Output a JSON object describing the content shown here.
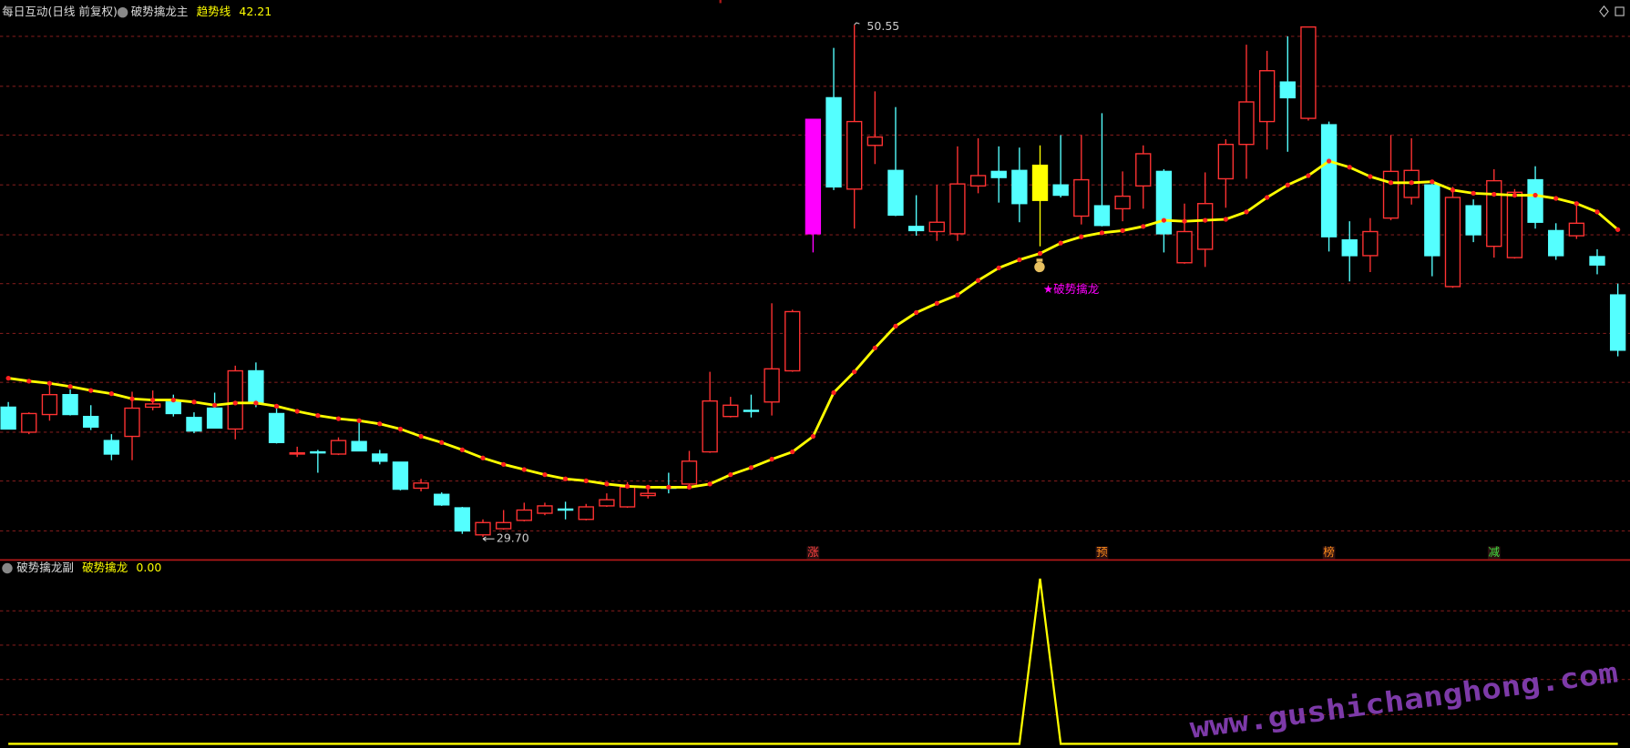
{
  "header": {
    "symbol": "每日互动(日线 前复权)"
  },
  "watermark": "www.gushichanghong.com",
  "chart_data": [
    {
      "type": "candlestick",
      "title": "破势擒龙主",
      "open": [
        34.98,
        33.96,
        34.68,
        35.49,
        34.6,
        33.62,
        33.79,
        34.98,
        35.19,
        34.56,
        34.94,
        34.09,
        36.46,
        34.72,
        33.07,
        33.16,
        33.07,
        33.58,
        33.07,
        32.74,
        31.68,
        31.43,
        30.88,
        29.78,
        30.03,
        30.37,
        30.66,
        30.83,
        30.41,
        30.96,
        30.92,
        31.38,
        31.72,
        31.85,
        33.16,
        34.6,
        34.85,
        35.19,
        36.46,
        42.04,
        47.58,
        43.86,
        45.64,
        44.62,
        42.34,
        42.13,
        42.04,
        43.99,
        44.58,
        44.62,
        43.4,
        44.03,
        42.76,
        43.18,
        43.06,
        43.99,
        44.58,
        40.86,
        41.41,
        44.28,
        45.68,
        46.61,
        48.22,
        46.74,
        46.48,
        41.79,
        41.15,
        42.68,
        43.52,
        44.03,
        39.89,
        43.18,
        41.53,
        41.07,
        44.24,
        42.17,
        41.96,
        41.11,
        39.55
      ],
      "high": [
        35.19,
        34.77,
        36.04,
        35.7,
        35.06,
        33.88,
        35.61,
        35.66,
        35.49,
        34.77,
        35.57,
        36.67,
        36.8,
        34.98,
        33.37,
        33.24,
        33.75,
        34.51,
        33.24,
        32.74,
        32.06,
        31.51,
        30.92,
        30.41,
        30.79,
        31.09,
        31.09,
        31.13,
        31.04,
        31.47,
        31.93,
        31.72,
        32.31,
        33.2,
        36.42,
        35.4,
        35.49,
        39.21,
        38.95,
        46.7,
        49.61,
        50.55,
        47.84,
        47.2,
        43.61,
        44.03,
        45.6,
        45.93,
        45.6,
        45.55,
        45.64,
        46.06,
        46.06,
        46.95,
        44.58,
        45.64,
        44.67,
        43.27,
        44.54,
        45.89,
        49.74,
        49.49,
        50.08,
        50.46,
        46.61,
        42.55,
        42.68,
        46.06,
        45.93,
        44.12,
        43.95,
        43.44,
        44.67,
        43.86,
        44.79,
        42.47,
        43.27,
        41.41,
        40.01
      ],
      "low": [
        34.09,
        33.88,
        34.43,
        34.64,
        34.05,
        32.82,
        32.82,
        34.85,
        34.6,
        33.92,
        34.13,
        33.67,
        34.98,
        33.5,
        32.95,
        32.31,
        33.03,
        33.2,
        32.65,
        31.59,
        31.55,
        30.96,
        29.82,
        29.7,
        29.99,
        30.33,
        30.58,
        30.41,
        30.37,
        30.92,
        30.88,
        31.26,
        31.47,
        31.68,
        33.12,
        34.56,
        34.56,
        34.64,
        36.42,
        41.28,
        43.82,
        42.25,
        44.88,
        42.76,
        41.96,
        41.75,
        41.75,
        43.69,
        43.31,
        42.51,
        41.53,
        43.52,
        42.42,
        42.34,
        42.55,
        43.06,
        41.28,
        40.82,
        40.69,
        43.1,
        44.28,
        45.47,
        45.38,
        46.65,
        41.32,
        40.1,
        40.48,
        42.59,
        43.23,
        40.31,
        39.84,
        41.7,
        41.07,
        41.03,
        42.25,
        40.98,
        41.83,
        40.39,
        37.05
      ],
      "close": [
        34.09,
        34.72,
        35.49,
        34.68,
        34.17,
        33.07,
        34.94,
        35.11,
        34.72,
        34.01,
        34.13,
        36.46,
        35.15,
        33.54,
        33.12,
        33.12,
        33.62,
        33.2,
        32.78,
        31.64,
        31.89,
        31.0,
        29.94,
        30.28,
        30.28,
        30.79,
        30.96,
        30.79,
        30.92,
        31.21,
        31.72,
        31.47,
        31.68,
        32.78,
        35.23,
        35.06,
        34.81,
        36.54,
        38.87,
        46.7,
        43.95,
        46.61,
        45.98,
        42.8,
        42.17,
        42.51,
        44.07,
        44.41,
        44.33,
        43.27,
        44.83,
        43.61,
        44.24,
        42.38,
        43.57,
        45.3,
        42.04,
        42.13,
        43.27,
        45.68,
        47.41,
        48.68,
        47.58,
        50.46,
        41.92,
        41.15,
        42.13,
        44.58,
        44.62,
        41.15,
        43.52,
        42.0,
        44.2,
        43.73,
        42.51,
        41.15,
        42.47,
        40.77,
        37.3
      ],
      "up_color": "#ff3232",
      "down_color": "#54ffff",
      "highlight": [
        {
          "index": 39,
          "color": "#ff00ff"
        },
        {
          "index": 50,
          "color": "#ffff00"
        }
      ],
      "series": [
        {
          "name": "趋势线",
          "color": "#ffff00",
          "dot_color": "#ff2020",
          "values": [
            36.16,
            36.04,
            35.95,
            35.82,
            35.66,
            35.53,
            35.32,
            35.27,
            35.27,
            35.19,
            35.06,
            35.15,
            35.15,
            35.02,
            34.81,
            34.64,
            34.51,
            34.43,
            34.3,
            34.09,
            33.79,
            33.54,
            33.24,
            32.91,
            32.65,
            32.44,
            32.23,
            32.06,
            31.98,
            31.85,
            31.76,
            31.72,
            31.72,
            31.72,
            31.85,
            32.23,
            32.52,
            32.86,
            33.16,
            33.79,
            35.57,
            36.42,
            37.39,
            38.28,
            38.83,
            39.21,
            39.55,
            40.14,
            40.65,
            40.98,
            41.24,
            41.66,
            41.92,
            42.08,
            42.17,
            42.34,
            42.59,
            42.55,
            42.59,
            42.63,
            42.93,
            43.52,
            44.03,
            44.41,
            45.0,
            44.75,
            44.37,
            44.12,
            44.12,
            44.16,
            43.82,
            43.69,
            43.65,
            43.61,
            43.61,
            43.48,
            43.27,
            42.93,
            42.21
          ]
        }
      ],
      "max_label": "50.55",
      "min_label": "29.70",
      "annotations": [
        {
          "index": 50,
          "text": "★破势擒龙",
          "color": "#ff00ff"
        }
      ],
      "signals": [
        {
          "index": 39,
          "label": "涨",
          "color": "#ff4040"
        },
        {
          "index": 53,
          "label": "预",
          "color": "#ff8c1a"
        },
        {
          "index": 64,
          "label": "榜",
          "color": "#ff8c1a"
        },
        {
          "index": 72,
          "label": "减",
          "color": "#40e040"
        }
      ],
      "ylim": [
        28.8,
        51.56
      ]
    },
    {
      "type": "line",
      "title": "破势擒龙副",
      "series": [
        {
          "name": "破势擒龙",
          "color": "#ffff00",
          "values": [
            0,
            0,
            0,
            0,
            0,
            0,
            0,
            0,
            0,
            0,
            0,
            0,
            0,
            0,
            0,
            0,
            0,
            0,
            0,
            0,
            0,
            0,
            0,
            0,
            0,
            0,
            0,
            0,
            0,
            0,
            0,
            0,
            0,
            0,
            0,
            0,
            0,
            0,
            0,
            0,
            0,
            0,
            0,
            0,
            0,
            0,
            0,
            0,
            0,
            0,
            1,
            0,
            0,
            0,
            0,
            0,
            0,
            0,
            0,
            0,
            0,
            0,
            0,
            0,
            0,
            0,
            0,
            0,
            0,
            0,
            0,
            0,
            0,
            0,
            0,
            0,
            0,
            0,
            0
          ],
          "value_labels": [
            null,
            null,
            null,
            null,
            null,
            null,
            null,
            null,
            null,
            null,
            null,
            null,
            null,
            null,
            null,
            null,
            null,
            null,
            null,
            null,
            null,
            null,
            null,
            null,
            null,
            null,
            null,
            null,
            null,
            null,
            null,
            null,
            null,
            null,
            null,
            null,
            null,
            null,
            null,
            null,
            null,
            null,
            null,
            null,
            null,
            null,
            null,
            null,
            null,
            null,
            null,
            null,
            null,
            null,
            null,
            null,
            null,
            null,
            null,
            null,
            null,
            null,
            null,
            null,
            null,
            null,
            null,
            null,
            null,
            null,
            null,
            null,
            null,
            null,
            null,
            null,
            null,
            null,
            "0.00"
          ]
        }
      ],
      "ylim": [
        0,
        1
      ]
    }
  ]
}
